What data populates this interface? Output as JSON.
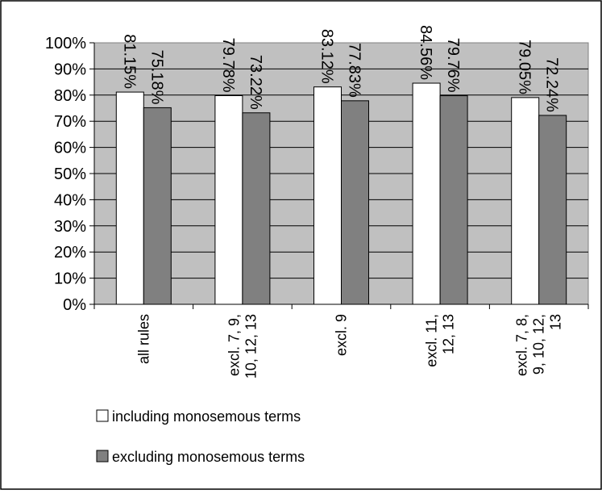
{
  "chart_data": {
    "type": "bar",
    "categories": [
      [
        "all rules"
      ],
      [
        "excl. 7, 9,",
        "10, 12, 13"
      ],
      [
        "excl. 9"
      ],
      [
        "excl. 11,",
        "12, 13"
      ],
      [
        "excl. 7, 8,",
        "9, 10, 12,",
        "13"
      ]
    ],
    "series": [
      {
        "name": "including monosemous terms",
        "values": [
          81.15,
          79.78,
          83.12,
          84.56,
          79.05
        ],
        "labels": [
          "81.15%",
          "79.78%",
          "83.12%",
          "84.56%",
          "79.05%"
        ],
        "color": "#ffffff"
      },
      {
        "name": "excluding monosemous terms",
        "values": [
          75.18,
          73.22,
          77.83,
          79.76,
          72.24
        ],
        "labels": [
          "75.18%",
          "73.22%",
          "77.83%",
          "79.76%",
          "72.24%"
        ],
        "color": "#808080"
      }
    ],
    "ylim": [
      0,
      100
    ],
    "yticks": [
      "0%",
      "10%",
      "20%",
      "30%",
      "40%",
      "50%",
      "60%",
      "70%",
      "80%",
      "90%",
      "100%"
    ],
    "title": "",
    "xlabel": "",
    "ylabel": "",
    "grid": true,
    "legend_position": "bottom-left",
    "plot_background": "#c0c0c0"
  }
}
